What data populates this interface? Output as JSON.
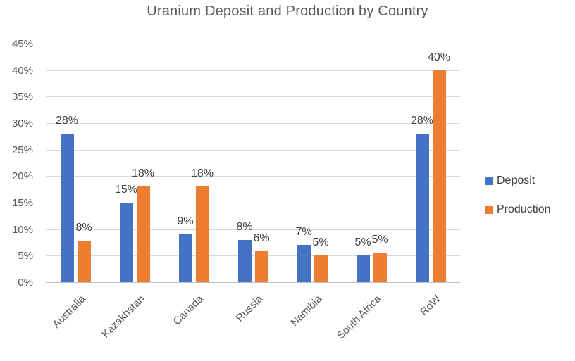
{
  "chart_data": {
    "type": "bar",
    "title": "Uranium Deposit and Production by Country",
    "categories": [
      "Australia",
      "Kazakhstan",
      "Canada",
      "Russia",
      "Namibia",
      "South Africa",
      "RoW"
    ],
    "series": [
      {
        "name": "Deposit",
        "color": "#4472C4",
        "values": [
          28,
          15,
          9,
          8,
          7,
          5,
          28
        ],
        "drawn_values": [
          28,
          15,
          9,
          8,
          7,
          5,
          28
        ],
        "data_labels": [
          "28%",
          "15%",
          "9%",
          "8%",
          "7%",
          "5%",
          "28%"
        ]
      },
      {
        "name": "Production",
        "color": "#ED7D31",
        "values": [
          8,
          18,
          18,
          6,
          5,
          5,
          40
        ],
        "drawn_values": [
          7.8,
          18,
          18,
          5.9,
          5,
          5.6,
          40
        ],
        "data_labels": [
          "8%",
          "18%",
          "18%",
          "6%",
          "5%",
          "5%",
          "40%"
        ]
      }
    ],
    "y_axis": {
      "min": 0,
      "max": 45,
      "step": 5,
      "tick_labels": [
        "0%",
        "5%",
        "10%",
        "15%",
        "20%",
        "25%",
        "30%",
        "35%",
        "40%",
        "45%"
      ]
    },
    "grid": true,
    "legend_position": "right",
    "styles": {
      "background": "#FFFFFF",
      "gridline_color": "#D9D9D9",
      "axis_line_color": "#BFBFBF",
      "title_color": "#595959",
      "tick_label_color": "#595959",
      "data_label_color": "#404040"
    }
  }
}
